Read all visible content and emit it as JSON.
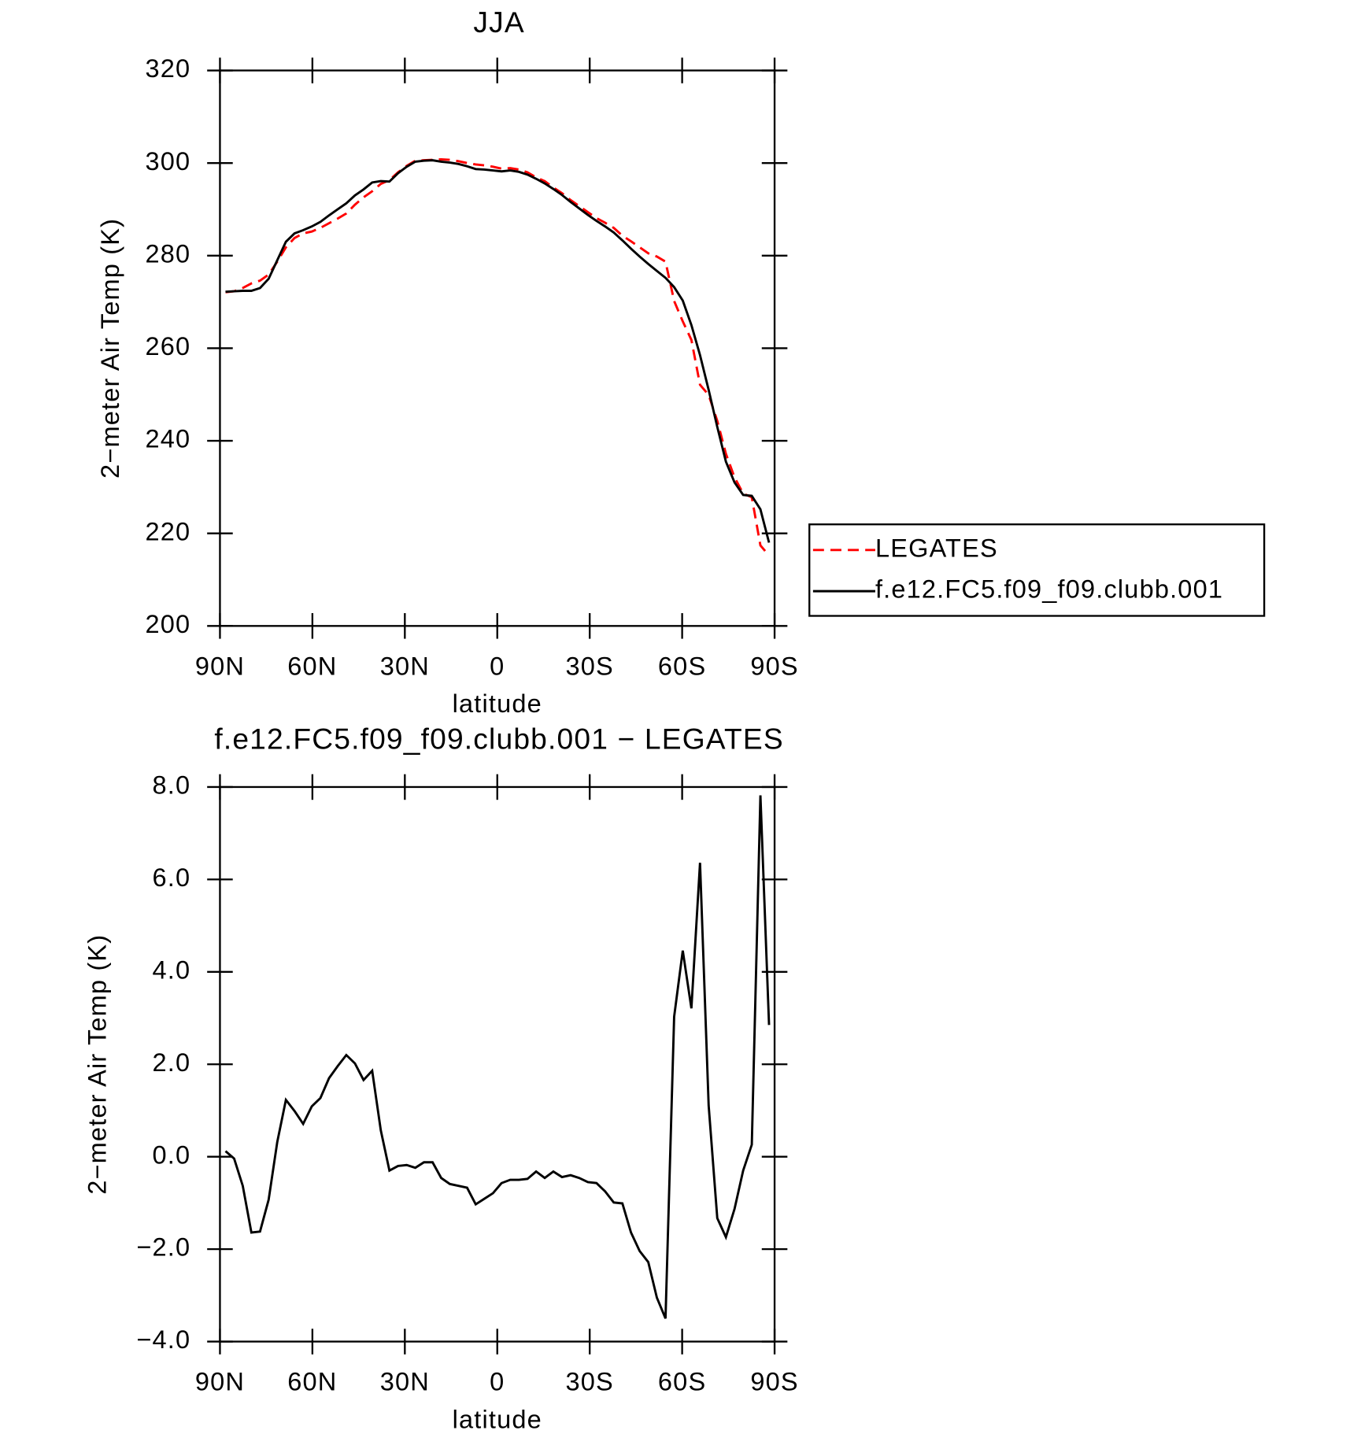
{
  "chart_data": [
    {
      "type": "line",
      "title": "JJA",
      "xlabel": "latitude",
      "ylabel": "2−meter Air Temp (K)",
      "x": [
        88.2,
        85.4,
        82.6,
        79.8,
        77.0,
        74.2,
        71.4,
        68.6,
        65.8,
        63.0,
        60.2,
        57.4,
        54.6,
        51.8,
        49.0,
        46.2,
        43.4,
        40.6,
        37.8,
        35.0,
        32.2,
        29.4,
        26.6,
        23.8,
        21.0,
        18.2,
        15.4,
        12.6,
        9.8,
        7.0,
        4.2,
        1.4,
        -1.4,
        -4.2,
        -7.0,
        -9.8,
        -12.6,
        -15.4,
        -18.2,
        -21.0,
        -23.8,
        -26.6,
        -29.4,
        -32.2,
        -35.0,
        -37.8,
        -40.6,
        -43.4,
        -46.2,
        -49.0,
        -51.8,
        -54.6,
        -57.4,
        -60.2,
        -63.0,
        -65.8,
        -68.6,
        -71.4,
        -74.2,
        -77.0,
        -79.8,
        -82.6,
        -85.4,
        -88.2
      ],
      "series": [
        {
          "name": "LEGATES",
          "color": "#ff0000",
          "dash": "dashed",
          "values": [
            272.1,
            272.3,
            273.0,
            274.0,
            274.6,
            275.9,
            278.7,
            281.8,
            283.8,
            284.8,
            285.2,
            286.0,
            287.0,
            288.0,
            289.1,
            291.0,
            292.6,
            293.9,
            295.5,
            296.3,
            298.0,
            299.4,
            300.5,
            300.6,
            300.7,
            300.8,
            300.7,
            300.4,
            300.0,
            299.7,
            299.5,
            299.2,
            298.8,
            298.9,
            298.6,
            298.0,
            296.9,
            296.1,
            294.7,
            293.5,
            292.0,
            290.7,
            289.4,
            288.1,
            287.1,
            286.0,
            284.3,
            283.1,
            281.8,
            280.5,
            279.8,
            278.7,
            270.2,
            265.8,
            261.8,
            252.1,
            249.9,
            244.3,
            237.2,
            232.1,
            228.6,
            227.8,
            217.4,
            215.2
          ]
        },
        {
          "name": "f.e12.FC5.f09_f09.clubb.001",
          "color": "#000000",
          "dash": "solid",
          "values": [
            272.2,
            272.3,
            272.4,
            272.4,
            273.0,
            275.0,
            279.0,
            283.0,
            284.8,
            285.5,
            286.3,
            287.3,
            288.7,
            290.0,
            291.3,
            293.0,
            294.3,
            295.8,
            296.1,
            296.0,
            297.8,
            299.2,
            300.3,
            300.5,
            300.6,
            300.3,
            300.1,
            299.8,
            299.3,
            298.7,
            298.6,
            298.4,
            298.2,
            298.4,
            298.1,
            297.5,
            296.6,
            295.6,
            294.4,
            293.1,
            291.6,
            290.2,
            288.8,
            287.5,
            286.3,
            285.0,
            283.3,
            281.5,
            279.8,
            278.2,
            276.7,
            275.2,
            273.2,
            270.3,
            265.0,
            258.5,
            251.0,
            243.0,
            235.5,
            231.0,
            228.3,
            228.1,
            225.2,
            218.0
          ]
        }
      ],
      "xlim": [
        90,
        -90
      ],
      "xticks": [
        {
          "value": 90,
          "label": "90N"
        },
        {
          "value": 60,
          "label": "60N"
        },
        {
          "value": 30,
          "label": "30N"
        },
        0,
        {
          "value": -30,
          "label": "30S"
        },
        {
          "value": -60,
          "label": "60S"
        },
        {
          "value": -90,
          "label": "90S"
        }
      ],
      "ylim": [
        200,
        320
      ],
      "yticks": [
        200,
        220,
        240,
        260,
        280,
        300,
        320
      ],
      "legend": "right"
    },
    {
      "type": "line",
      "title": "f.e12.FC5.f09_f09.clubb.001 − LEGATES",
      "xlabel": "latitude",
      "ylabel": "2−meter Air Temp (K)",
      "x": [
        88.2,
        85.4,
        82.6,
        79.8,
        77.0,
        74.2,
        71.4,
        68.6,
        65.8,
        63.0,
        60.2,
        57.4,
        54.6,
        51.8,
        49.0,
        46.2,
        43.4,
        40.6,
        37.8,
        35.0,
        32.2,
        29.4,
        26.6,
        23.8,
        21.0,
        18.2,
        15.4,
        12.6,
        9.8,
        7.0,
        4.2,
        1.4,
        -1.4,
        -4.2,
        -7.0,
        -9.8,
        -12.6,
        -15.4,
        -18.2,
        -21.0,
        -23.8,
        -26.6,
        -29.4,
        -32.2,
        -35.0,
        -37.8,
        -40.6,
        -43.4,
        -46.2,
        -49.0,
        -51.8,
        -54.6,
        -57.4,
        -60.2,
        -63.0,
        -65.8,
        -68.6,
        -71.4,
        -74.2,
        -77.0,
        -79.8,
        -82.6,
        -85.4,
        -88.2
      ],
      "color": "#000000",
      "values": [
        0.12,
        -0.04,
        -0.63,
        -1.64,
        -1.62,
        -0.93,
        0.32,
        1.23,
        0.99,
        0.71,
        1.09,
        1.27,
        1.7,
        1.96,
        2.2,
        2.02,
        1.66,
        1.86,
        0.57,
        -0.3,
        -0.2,
        -0.18,
        -0.24,
        -0.12,
        -0.12,
        -0.46,
        -0.59,
        -0.63,
        -0.67,
        -1.03,
        -0.91,
        -0.79,
        -0.57,
        -0.5,
        -0.5,
        -0.48,
        -0.32,
        -0.46,
        -0.32,
        -0.44,
        -0.4,
        -0.46,
        -0.55,
        -0.57,
        -0.75,
        -0.99,
        -1.01,
        -1.64,
        -2.04,
        -2.28,
        -3.05,
        -3.5,
        3.03,
        4.46,
        3.21,
        6.36,
        1.11,
        -1.33,
        -1.74,
        -1.13,
        -0.3,
        0.26,
        7.82,
        2.85
      ],
      "xlim": [
        90,
        -90
      ],
      "xticks": [
        {
          "value": 90,
          "label": "90N"
        },
        {
          "value": 60,
          "label": "60N"
        },
        {
          "value": 30,
          "label": "30N"
        },
        0,
        {
          "value": -30,
          "label": "30S"
        },
        {
          "value": -60,
          "label": "60S"
        },
        {
          "value": -90,
          "label": "90S"
        }
      ],
      "ylim": [
        -4,
        8
      ],
      "yticks": [
        {
          "value": -4,
          "label": "−4.0"
        },
        {
          "value": -2,
          "label": "−2.0"
        },
        {
          "value": 0,
          "label": "0.0"
        },
        {
          "value": 2,
          "label": "2.0"
        },
        {
          "value": 4,
          "label": "4.0"
        },
        {
          "value": 6,
          "label": "6.0"
        },
        {
          "value": 8,
          "label": "8.0"
        }
      ]
    }
  ]
}
